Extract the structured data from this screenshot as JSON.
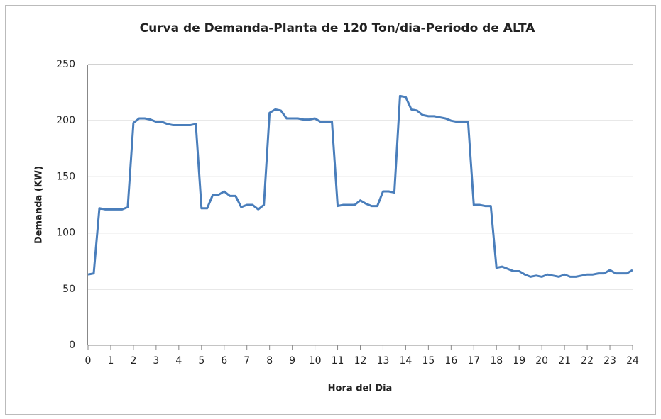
{
  "chart_data": {
    "type": "line",
    "title": "Curva de  Demanda-Planta de 120 Ton/dia-Periodo de  ALTA",
    "x_label": "Hora del Dia",
    "y_label": "Demanda (KW)",
    "x": [
      0,
      0.25,
      0.5,
      0.75,
      1,
      1.25,
      1.5,
      1.75,
      2,
      2.25,
      2.5,
      2.75,
      3,
      3.25,
      3.5,
      3.75,
      4,
      4.25,
      4.5,
      4.75,
      5,
      5.25,
      5.5,
      5.75,
      6,
      6.25,
      6.5,
      6.75,
      7,
      7.25,
      7.5,
      7.75,
      8,
      8.25,
      8.5,
      8.75,
      9,
      9.25,
      9.5,
      9.75,
      10,
      10.25,
      10.5,
      10.75,
      11,
      11.25,
      11.5,
      11.75,
      12,
      12.25,
      12.5,
      12.75,
      13,
      13.25,
      13.5,
      13.75,
      14,
      14.25,
      14.5,
      14.75,
      15,
      15.25,
      15.5,
      15.75,
      16,
      16.25,
      16.5,
      16.75,
      17,
      17.25,
      17.5,
      17.75,
      18,
      18.25,
      18.5,
      18.75,
      19,
      19.25,
      19.5,
      19.75,
      20,
      20.25,
      20.5,
      20.75,
      21,
      21.25,
      21.5,
      21.75,
      22,
      22.25,
      22.5,
      22.75,
      23,
      23.25,
      23.5,
      23.75,
      24
    ],
    "series": [
      {
        "name": "Demanda",
        "color": "#4a7ebb",
        "values": [
          63,
          64,
          122,
          121,
          121,
          121,
          121,
          123,
          198,
          202,
          202,
          201,
          199,
          199,
          197,
          196,
          196,
          196,
          196,
          197,
          122,
          122,
          134,
          134,
          137,
          133,
          133,
          123,
          125,
          125,
          121,
          125,
          207,
          210,
          209,
          202,
          202,
          202,
          201,
          201,
          202,
          199,
          199,
          199,
          124,
          125,
          125,
          125,
          129,
          126,
          124,
          124,
          137,
          137,
          136,
          222,
          221,
          210,
          209,
          205,
          204,
          204,
          203,
          202,
          200,
          199,
          199,
          199,
          125,
          125,
          124,
          124,
          69,
          70,
          68,
          66,
          66,
          63,
          61,
          62,
          61,
          63,
          62,
          61,
          63,
          61,
          61,
          62,
          63,
          63,
          64,
          64,
          67,
          64,
          64,
          64,
          67
        ]
      }
    ],
    "xlim": [
      0,
      24
    ],
    "xticks": [
      0,
      1,
      2,
      3,
      4,
      5,
      6,
      7,
      8,
      9,
      10,
      11,
      12,
      13,
      14,
      15,
      16,
      17,
      18,
      19,
      20,
      21,
      22,
      23,
      24
    ],
    "ylim": [
      0,
      250
    ],
    "yticks": [
      0,
      50,
      100,
      150,
      200,
      250
    ],
    "grid": true
  }
}
